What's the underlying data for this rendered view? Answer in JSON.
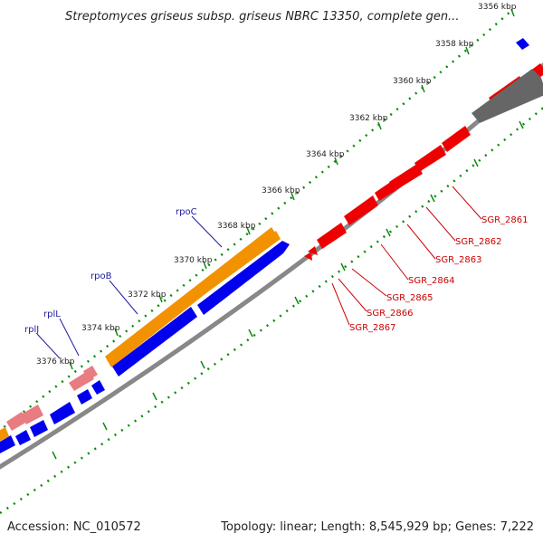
{
  "title": "Streptomyces griseus subsp. griseus NBRC 13350, complete gen...",
  "accession": "Accession: NC_010572",
  "summary": "Topology: linear; Length: 8,545,929 bp; Genes: 7,222",
  "ticks": [
    {
      "label": "3356 kbp"
    },
    {
      "label": "3358 kbp"
    },
    {
      "label": "3360 kbp"
    },
    {
      "label": "3362 kbp"
    },
    {
      "label": "3364 kbp"
    },
    {
      "label": "3366 kbp"
    },
    {
      "label": "3368 kbp"
    },
    {
      "label": "3370 kbp"
    },
    {
      "label": "3372 kbp"
    },
    {
      "label": "3374 kbp"
    },
    {
      "label": "3376 kbp"
    }
  ],
  "genes_named_forward": [
    "rpoC",
    "rpoB",
    "rplL",
    "rplJ"
  ],
  "genes_named_reverse": [
    "SGR_2861",
    "SGR_2862",
    "SGR_2863",
    "SGR_2864",
    "SGR_2865",
    "SGR_2866",
    "SGR_2867"
  ],
  "colors": {
    "orange": "#f39200",
    "blue": "#0000ee",
    "pink": "#e87c80",
    "red": "#ee0000",
    "gray": "#666666",
    "axis": "#888888",
    "tick": "#0a8a0a",
    "label_blue": "#1a1aa0",
    "label_red": "#cc0000"
  }
}
